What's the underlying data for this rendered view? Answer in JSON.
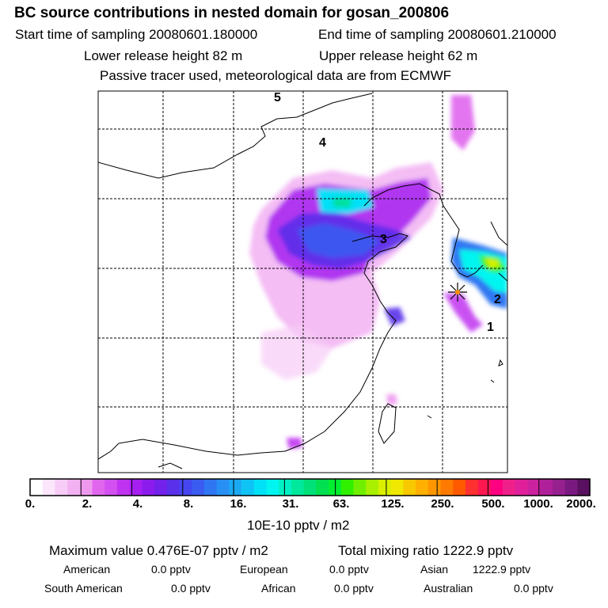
{
  "header": {
    "title": "BC  source contributions in nested domain for gosan_200806",
    "start_time": "Start time of sampling 20080601.180000",
    "end_time": "End time of sampling 20080601.210000",
    "lower_release": "Lower release height   82 m",
    "upper_release": "Upper release height   62 m",
    "tracer_note": "Passive tracer used, meteorological data are from ECMWF"
  },
  "map": {
    "region_labels": [
      "1",
      "2",
      "3",
      "4",
      "5"
    ],
    "source_marker": "receptor-star"
  },
  "colorbar": {
    "ticks": [
      "0.",
      "2.",
      "4.",
      "8.",
      "16.",
      "31.",
      "63.",
      "125.",
      "250.",
      "500.",
      "1000.",
      "2000."
    ],
    "unit": "10E-10 pptv / m2",
    "colors": [
      "#ffffff",
      "#fbe6fb",
      "#f7ccf7",
      "#f2b2f2",
      "#ee99ee",
      "#e066ee",
      "#d24ff0",
      "#c033f0",
      "#a61ff0",
      "#8c1cee",
      "#7222ea",
      "#5a30ea",
      "#4546ee",
      "#3a5cf0",
      "#2f76f2",
      "#2890f4",
      "#1aaaf4",
      "#0fc4f5",
      "#00e0f6",
      "#00f5f0",
      "#00f0c4",
      "#00e89c",
      "#00e078",
      "#00e050",
      "#00ee30",
      "#30f000",
      "#70f000",
      "#a8f000",
      "#d8f000",
      "#f0e800",
      "#f8c800",
      "#ffb000",
      "#ff9600",
      "#ff7a00",
      "#ff5a00",
      "#ff3030",
      "#ff1850",
      "#ff0080",
      "#f0208a",
      "#e0209a",
      "#cc22a0",
      "#b0209a",
      "#96208e",
      "#7a1a80",
      "#5a1060"
    ]
  },
  "footer": {
    "maximum_value": "Maximum value  0.476E-07 pptv / m2",
    "total_mixing": "Total mixing ratio     1222.9 pptv",
    "american_label": "American",
    "american_value": "0.0 pptv",
    "european_label": "European",
    "european_value": "0.0 pptv",
    "asian_label": "Asian",
    "asian_value": "1222.9 pptv",
    "south_american_label": "South American",
    "south_american_value": "0.0 pptv",
    "african_label": "African",
    "african_value": "0.0 pptv",
    "australian_label": "Australian",
    "australian_value": "0.0 pptv"
  }
}
